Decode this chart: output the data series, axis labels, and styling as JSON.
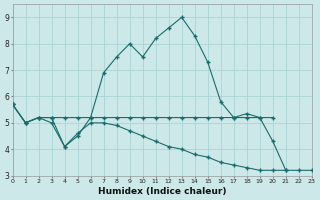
{
  "xlabel": "Humidex (Indice chaleur)",
  "background_color": "#cce8e8",
  "grid_color": "#aad4d4",
  "line_color": "#1a6b6b",
  "xlim": [
    0,
    23
  ],
  "ylim": [
    3,
    9.5
  ],
  "yticks": [
    3,
    4,
    5,
    6,
    7,
    8,
    9
  ],
  "xticks": [
    0,
    1,
    2,
    3,
    4,
    5,
    6,
    7,
    8,
    9,
    10,
    11,
    12,
    13,
    14,
    15,
    16,
    17,
    18,
    19,
    20,
    21,
    22,
    23
  ],
  "series_flat_x": [
    0,
    1,
    2,
    3,
    4,
    5,
    6,
    7,
    8,
    9,
    10,
    11,
    12,
    13,
    14,
    15,
    16,
    17,
    18,
    19,
    20
  ],
  "series_flat_y": [
    5.7,
    5.0,
    5.2,
    5.2,
    5.2,
    5.2,
    5.2,
    5.2,
    5.2,
    5.2,
    5.2,
    5.2,
    5.2,
    5.2,
    5.2,
    5.2,
    5.2,
    5.2,
    5.2,
    5.2,
    5.2
  ],
  "series_peak_x": [
    0,
    1,
    2,
    3,
    4,
    5,
    6,
    7,
    8,
    9,
    10,
    11,
    12,
    13,
    14,
    15,
    16,
    17,
    18,
    19,
    20,
    21
  ],
  "series_peak_y": [
    5.7,
    5.0,
    5.2,
    5.2,
    4.1,
    4.5,
    5.2,
    6.9,
    7.5,
    8.0,
    7.5,
    8.2,
    8.6,
    9.0,
    8.3,
    7.3,
    5.8,
    5.2,
    5.35,
    5.2,
    4.3,
    3.2
  ],
  "series_desc_x": [
    0,
    1,
    2,
    3,
    4,
    5,
    6,
    7,
    8,
    9,
    10,
    11,
    12,
    13,
    14,
    15,
    16,
    17,
    18,
    19,
    20,
    21,
    22,
    23
  ],
  "series_desc_y": [
    5.7,
    5.0,
    5.2,
    5.0,
    4.1,
    4.6,
    5.0,
    5.0,
    4.9,
    4.7,
    4.5,
    4.3,
    4.1,
    4.0,
    3.8,
    3.7,
    3.5,
    3.4,
    3.3,
    3.2,
    3.2,
    3.2,
    3.2,
    3.2
  ]
}
